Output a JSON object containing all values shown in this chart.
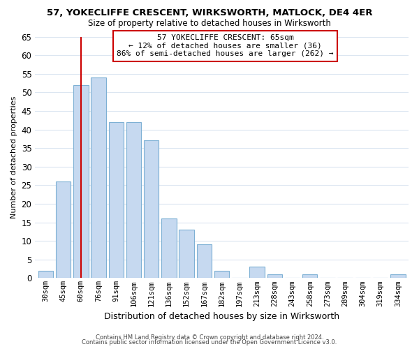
{
  "title": "57, YOKECLIFFE CRESCENT, WIRKSWORTH, MATLOCK, DE4 4ER",
  "subtitle": "Size of property relative to detached houses in Wirksworth",
  "xlabel": "Distribution of detached houses by size in Wirksworth",
  "ylabel": "Number of detached properties",
  "bar_labels": [
    "30sqm",
    "45sqm",
    "60sqm",
    "76sqm",
    "91sqm",
    "106sqm",
    "121sqm",
    "136sqm",
    "152sqm",
    "167sqm",
    "182sqm",
    "197sqm",
    "213sqm",
    "228sqm",
    "243sqm",
    "258sqm",
    "273sqm",
    "289sqm",
    "304sqm",
    "319sqm",
    "334sqm"
  ],
  "bar_values": [
    2,
    26,
    52,
    54,
    42,
    42,
    37,
    16,
    13,
    9,
    2,
    0,
    3,
    1,
    0,
    1,
    0,
    0,
    0,
    0,
    1
  ],
  "bar_color": "#c6d9f0",
  "bar_edge_color": "#7db0d4",
  "ylim": [
    0,
    65
  ],
  "yticks": [
    0,
    5,
    10,
    15,
    20,
    25,
    30,
    35,
    40,
    45,
    50,
    55,
    60,
    65
  ],
  "property_line_x": 2,
  "property_line_color": "#cc0000",
  "annotation_title": "57 YOKECLIFFE CRESCENT: 65sqm",
  "annotation_line1": "← 12% of detached houses are smaller (36)",
  "annotation_line2": "86% of semi-detached houses are larger (262) →",
  "annotation_box_color": "#ffffff",
  "annotation_box_edge": "#cc0000",
  "footer_line1": "Contains HM Land Registry data © Crown copyright and database right 2024.",
  "footer_line2": "Contains public sector information licensed under the Open Government Licence v3.0.",
  "bg_color": "#ffffff",
  "grid_color": "#dce6f1"
}
